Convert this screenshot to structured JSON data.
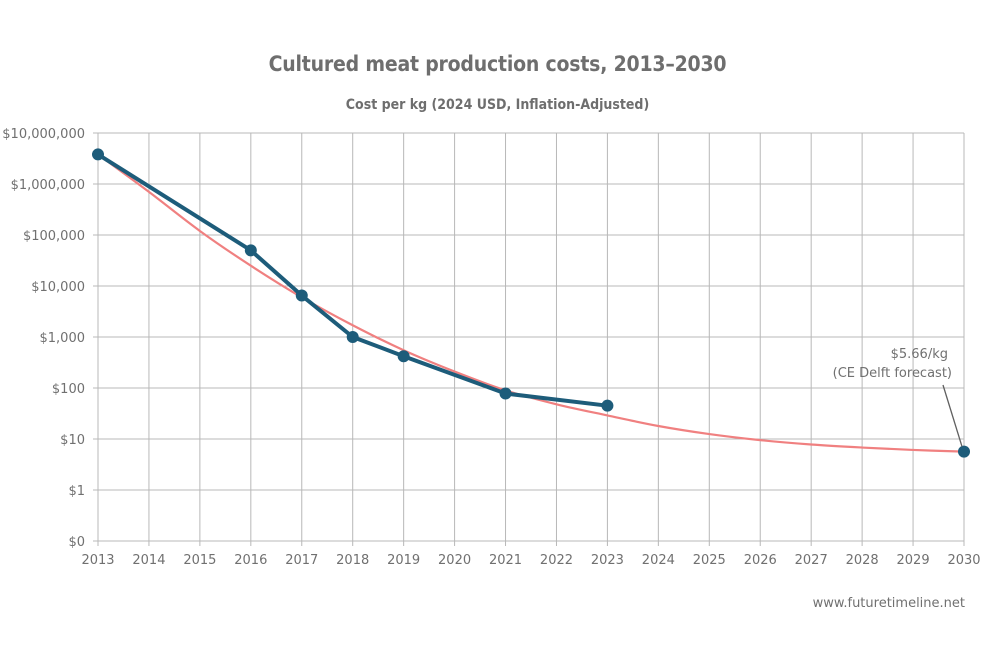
{
  "chart_data": {
    "type": "line",
    "title": "Cultured meat production costs, 2013–2030",
    "subtitle": "Cost per kg (2024 USD, Inflation-Adjusted)",
    "yscale": "log",
    "xlim": [
      2013,
      2030
    ],
    "ylim": [
      0,
      10000000
    ],
    "grid": true,
    "x_ticks": [
      "2013",
      "2014",
      "2015",
      "2016",
      "2017",
      "2018",
      "2019",
      "2020",
      "2021",
      "2022",
      "2023",
      "2024",
      "2025",
      "2026",
      "2027",
      "2028",
      "2029",
      "2030"
    ],
    "y_ticks": [
      "$0",
      "$1",
      "$10",
      "$100",
      "$1,000",
      "$10,000",
      "$100,000",
      "$1,000,000",
      "$10,000,000"
    ],
    "series": [
      {
        "color": "#1d5c7a",
        "points": [
          {
            "x": 2013,
            "y": 3800000
          },
          {
            "x": 2016,
            "y": 50000
          },
          {
            "x": 2017,
            "y": 6500
          },
          {
            "x": 2018,
            "y": 1000
          },
          {
            "x": 2019,
            "y": 420
          },
          {
            "x": 2021,
            "y": 78
          },
          {
            "x": 2023,
            "y": 45
          }
        ]
      },
      {
        "color": "#f08080",
        "type": "trend",
        "points": [
          {
            "x": 2013,
            "y": 3800000
          },
          {
            "x": 2014,
            "y": 700000
          },
          {
            "x": 2015,
            "y": 120000
          },
          {
            "x": 2016,
            "y": 25000
          },
          {
            "x": 2017,
            "y": 6000
          },
          {
            "x": 2018,
            "y": 1700
          },
          {
            "x": 2019,
            "y": 550
          },
          {
            "x": 2020,
            "y": 210
          },
          {
            "x": 2021,
            "y": 90
          },
          {
            "x": 2022,
            "y": 48
          },
          {
            "x": 2023,
            "y": 29
          },
          {
            "x": 2024,
            "y": 18
          },
          {
            "x": 2025,
            "y": 12.5
          },
          {
            "x": 2026,
            "y": 9.5
          },
          {
            "x": 2027,
            "y": 7.8
          },
          {
            "x": 2028,
            "y": 6.8
          },
          {
            "x": 2029,
            "y": 6.1
          },
          {
            "x": 2030,
            "y": 5.66
          }
        ]
      },
      {
        "color": "#1d5c7a",
        "type": "forecast-point",
        "points": [
          {
            "x": 2030,
            "y": 5.66
          }
        ]
      }
    ],
    "annotation": {
      "x": 2030,
      "y": 5.66,
      "line1": "$5.66/kg",
      "line2": "(CE Delft forecast)"
    }
  },
  "source": "www.futuretimeline.net"
}
